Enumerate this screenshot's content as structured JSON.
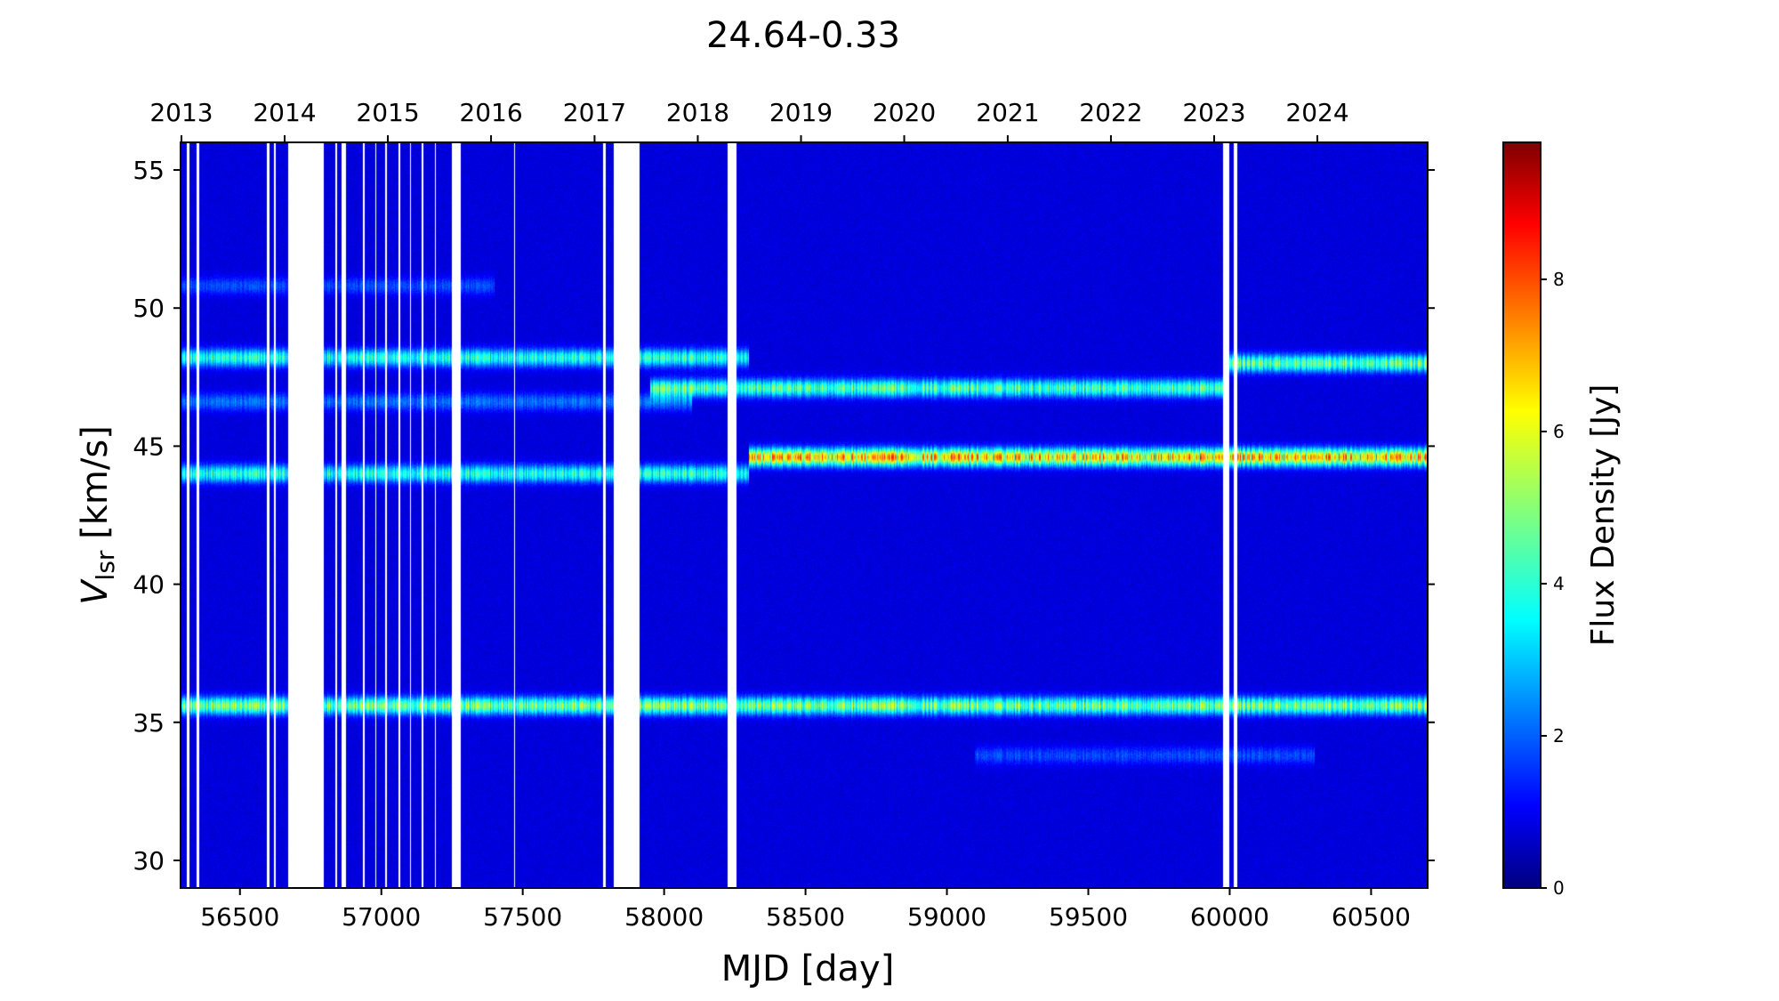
{
  "chart_data": {
    "type": "heatmap",
    "title": "24.64-0.33",
    "xlabel": "MJD [day]",
    "ylabel_main": "V",
    "ylabel_sub": "lsr",
    "ylabel_unit": " [km/s]",
    "colorbar_label": "Flux Density [Jy]",
    "xlim": [
      56290,
      60700
    ],
    "ylim": [
      29,
      56
    ],
    "x_ticks": [
      56500,
      57000,
      57500,
      58000,
      58500,
      59000,
      59500,
      60000,
      60500
    ],
    "y_ticks": [
      30,
      35,
      40,
      45,
      50,
      55
    ],
    "top_axis": {
      "label_type": "year",
      "ticks": [
        {
          "label": "2013",
          "mjd": 56293
        },
        {
          "label": "2014",
          "mjd": 56658
        },
        {
          "label": "2015",
          "mjd": 57023
        },
        {
          "label": "2016",
          "mjd": 57388
        },
        {
          "label": "2017",
          "mjd": 57754
        },
        {
          "label": "2018",
          "mjd": 58119
        },
        {
          "label": "2019",
          "mjd": 58484
        },
        {
          "label": "2020",
          "mjd": 58849
        },
        {
          "label": "2021",
          "mjd": 59215
        },
        {
          "label": "2022",
          "mjd": 59580
        },
        {
          "label": "2023",
          "mjd": 59945
        },
        {
          "label": "2024",
          "mjd": 60310
        }
      ]
    },
    "colorbar": {
      "colormap": "jet",
      "range": [
        0,
        9.8
      ],
      "ticks": [
        0,
        2,
        4,
        6,
        8
      ]
    },
    "background_level_jy": 0.4,
    "gaps_mjd": [
      [
        56313,
        56322
      ],
      [
        56348,
        56356
      ],
      [
        56595,
        56603
      ],
      [
        56621,
        56627
      ],
      [
        56670,
        56795
      ],
      [
        56838,
        56845
      ],
      [
        56860,
        56874
      ],
      [
        56935,
        56940
      ],
      [
        56978,
        56983
      ],
      [
        57015,
        57020
      ],
      [
        57062,
        57067
      ],
      [
        57100,
        57104
      ],
      [
        57144,
        57148
      ],
      [
        57189,
        57192
      ],
      [
        57248,
        57280
      ],
      [
        57470,
        57474
      ],
      [
        57783,
        57795
      ],
      [
        57823,
        57912
      ],
      [
        58223,
        58256
      ],
      [
        59975,
        60000
      ],
      [
        60015,
        60026
      ]
    ],
    "maser_features": [
      {
        "velocity_kms": 35.6,
        "mjd_range": [
          56290,
          60700
        ],
        "peak_jy": 4.5
      },
      {
        "velocity_kms": 44.0,
        "mjd_range": [
          56290,
          58300
        ],
        "peak_jy": 3.5
      },
      {
        "velocity_kms": 44.6,
        "mjd_range": [
          58300,
          60700
        ],
        "peak_jy": 6.5
      },
      {
        "velocity_kms": 48.2,
        "mjd_range": [
          56290,
          58300
        ],
        "peak_jy": 3.5
      },
      {
        "velocity_kms": 47.1,
        "mjd_range": [
          57950,
          60000
        ],
        "peak_jy": 4.0
      },
      {
        "velocity_kms": 48.0,
        "mjd_range": [
          60000,
          60700
        ],
        "peak_jy": 4.2
      },
      {
        "velocity_kms": 46.6,
        "mjd_range": [
          56290,
          58100
        ],
        "peak_jy": 1.6
      },
      {
        "velocity_kms": 50.8,
        "mjd_range": [
          56290,
          57400
        ],
        "peak_jy": 1.2
      },
      {
        "velocity_kms": 33.8,
        "mjd_range": [
          59100,
          60300
        ],
        "peak_jy": 1.2
      }
    ]
  }
}
